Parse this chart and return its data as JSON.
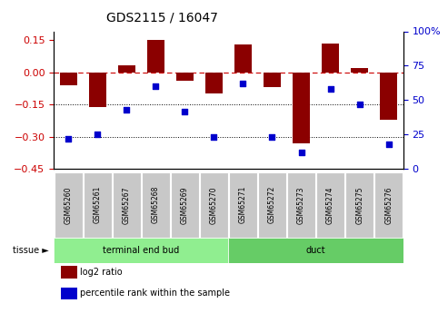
{
  "title": "GDS2115 / 16047",
  "samples": [
    "GSM65260",
    "GSM65261",
    "GSM65267",
    "GSM65268",
    "GSM65269",
    "GSM65270",
    "GSM65271",
    "GSM65272",
    "GSM65273",
    "GSM65274",
    "GSM65275",
    "GSM65276"
  ],
  "log2_ratio": [
    -0.06,
    -0.16,
    0.03,
    0.148,
    -0.04,
    -0.1,
    0.13,
    -0.07,
    -0.33,
    0.135,
    0.02,
    -0.22
  ],
  "percentile_rank": [
    22,
    25,
    43,
    60,
    42,
    23,
    62,
    23,
    12,
    58,
    47,
    18
  ],
  "tissue_groups": [
    {
      "label": "terminal end bud",
      "start": 0,
      "end": 6,
      "color": "#90EE90"
    },
    {
      "label": "duct",
      "start": 6,
      "end": 12,
      "color": "#66CC66"
    }
  ],
  "ylim_left": [
    -0.45,
    0.19
  ],
  "ylim_right": [
    0,
    100
  ],
  "yticks_left": [
    0.15,
    0,
    -0.15,
    -0.3,
    -0.45
  ],
  "yticks_right": [
    100,
    75,
    50,
    25,
    0
  ],
  "bar_color": "#8B0000",
  "dot_color": "#0000CC",
  "hline_color": "#CC0000",
  "dotted_line_color": "#000000",
  "bg_color": "#ffffff",
  "sample_box_color": "#C8C8C8",
  "tissue_label_color": "#000000",
  "legend_items": [
    {
      "label": "log2 ratio",
      "color": "#8B0000"
    },
    {
      "label": "percentile rank within the sample",
      "color": "#0000CC"
    }
  ]
}
